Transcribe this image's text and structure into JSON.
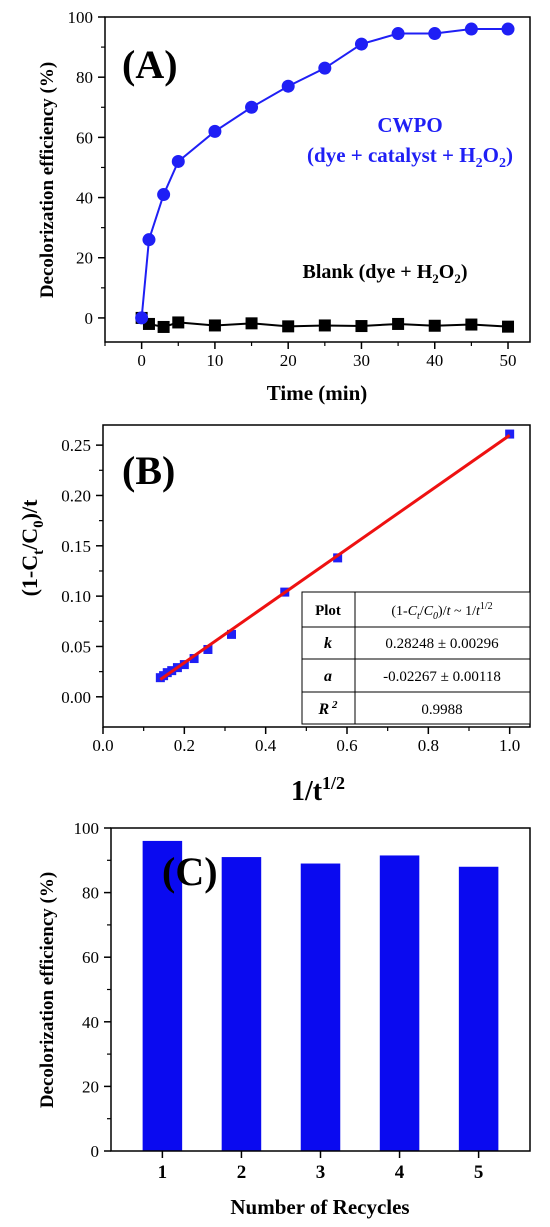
{
  "chart_data": [
    {
      "type": "line",
      "panel_label": "(A)",
      "xlabel": "Time (min)",
      "ylabel": "Decolorization efficiency (%)",
      "xlim": [
        -5,
        53
      ],
      "ylim": [
        -8,
        100
      ],
      "xticks": [
        0,
        10,
        20,
        30,
        40,
        50
      ],
      "yticks": [
        0,
        20,
        40,
        60,
        80,
        100
      ],
      "grid": false,
      "series": [
        {
          "name": "CWPO",
          "annotation_line1": "CWPO",
          "annotation_line2": "(dye + catalyst + H2O2)",
          "color": "#1f1ff5",
          "marker": "circle",
          "x": [
            0,
            1,
            3,
            5,
            10,
            15,
            20,
            25,
            30,
            35,
            40,
            45,
            50
          ],
          "values": [
            0,
            26,
            41,
            52,
            62,
            70,
            77,
            83,
            91,
            94.5,
            94.5,
            96,
            96
          ]
        },
        {
          "name": "Blank",
          "annotation_line1": "Blank (dye + H2O2)",
          "color": "#000000",
          "marker": "square",
          "x": [
            0,
            1,
            3,
            5,
            10,
            15,
            20,
            25,
            30,
            35,
            40,
            45,
            50
          ],
          "values": [
            0,
            -2,
            -3,
            -1.5,
            -2.5,
            -1.8,
            -2.8,
            -2.5,
            -2.7,
            -2,
            -2.6,
            -2.2,
            -2.9
          ]
        }
      ]
    },
    {
      "type": "scatter",
      "panel_label": "(B)",
      "xlabel": "1/t^1/2",
      "ylabel": "(1-Ct/C0)/t",
      "xlim": [
        0,
        1.05
      ],
      "ylim": [
        -0.03,
        0.27
      ],
      "xticks": [
        "0.0",
        "0.2",
        "0.4",
        "0.6",
        "0.8",
        "1.0"
      ],
      "yticks": [
        "0.00",
        "0.05",
        "0.10",
        "0.15",
        "0.20",
        "0.25"
      ],
      "grid": false,
      "points": {
        "color": "#1f1ff5",
        "marker": "square",
        "x": [
          1.0,
          0.577,
          0.447,
          0.316,
          0.258,
          0.224,
          0.2,
          0.183,
          0.169,
          0.158,
          0.149,
          0.141
        ],
        "values": [
          0.261,
          0.138,
          0.104,
          0.062,
          0.047,
          0.038,
          0.032,
          0.029,
          0.026,
          0.024,
          0.021,
          0.019
        ]
      },
      "fit_line": {
        "color": "#ee1111",
        "x": [
          0.141,
          1.0
        ],
        "values": [
          0.0172,
          0.2598
        ]
      },
      "fit_table": {
        "rows": [
          {
            "label": "Plot",
            "value": "(1-Ct/C0)/t ~ 1/t^1/2"
          },
          {
            "label": "k",
            "value": "0.28248 ± 0.00296"
          },
          {
            "label": "a",
            "value": "-0.02267 ± 0.00118"
          },
          {
            "label": "R 2",
            "value": "0.9988"
          }
        ]
      }
    },
    {
      "type": "bar",
      "panel_label": "(C)",
      "xlabel": "Number of Recycles",
      "ylabel": "Decolorization efficiency (%)",
      "ylim": [
        0,
        100
      ],
      "yticks": [
        0,
        20,
        40,
        60,
        80,
        100
      ],
      "grid": false,
      "bar_color": "#0a0af0",
      "categories": [
        "1",
        "2",
        "3",
        "4",
        "5"
      ],
      "values": [
        96,
        91,
        89,
        91.5,
        88
      ]
    }
  ]
}
